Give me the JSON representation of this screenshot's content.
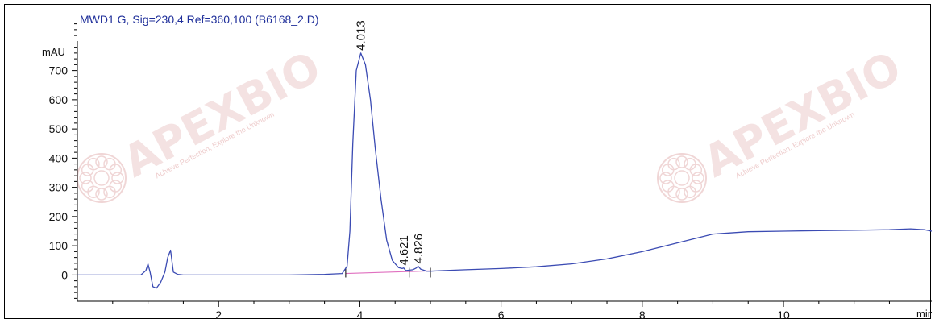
{
  "chart_data": {
    "type": "line",
    "title": "MWD1 G, Sig=230,4 Ref=360,100 (B6168_2.D)",
    "ylabel": "mAU",
    "xlabel": "min",
    "xlim": [
      0.0,
      12.1
    ],
    "ylim": [
      -90,
      870
    ],
    "x_ticks": [
      2,
      4,
      6,
      8,
      10
    ],
    "y_ticks": [
      0,
      100,
      200,
      300,
      400,
      500,
      600,
      700
    ],
    "grid": false,
    "series": [
      {
        "color": "#3b4bb3",
        "x": [
          0.0,
          0.5,
          0.9,
          0.97,
          1.0,
          1.03,
          1.07,
          1.12,
          1.18,
          1.24,
          1.28,
          1.32,
          1.36,
          1.42,
          1.5,
          2.0,
          3.0,
          3.5,
          3.75,
          3.82,
          3.86,
          3.9,
          3.95,
          4.013,
          4.08,
          4.15,
          4.22,
          4.3,
          4.38,
          4.46,
          4.55,
          4.6,
          4.621,
          4.65,
          4.75,
          4.8,
          4.826,
          4.86,
          4.95,
          5.0,
          5.2,
          5.5,
          6.0,
          6.5,
          7.0,
          7.5,
          8.0,
          8.5,
          9.0,
          9.5,
          10.0,
          10.5,
          11.0,
          11.5,
          11.8,
          12.0,
          12.1
        ],
        "y": [
          0,
          0,
          0,
          15,
          38,
          10,
          -40,
          -45,
          -25,
          10,
          60,
          85,
          10,
          2,
          0,
          0,
          0,
          2,
          5,
          30,
          150,
          450,
          700,
          760,
          720,
          600,
          430,
          260,
          120,
          50,
          25,
          22,
          24,
          15,
          18,
          24,
          30,
          20,
          13,
          13,
          15,
          18,
          22,
          28,
          38,
          55,
          80,
          110,
          140,
          148,
          150,
          152,
          153,
          155,
          158,
          155,
          150
        ]
      }
    ],
    "peaks": [
      {
        "label": "4.013",
        "x": 4.013,
        "y": 760
      },
      {
        "label": "4.621",
        "x": 4.621,
        "y": 24
      },
      {
        "label": "4.826",
        "x": 4.826,
        "y": 30
      }
    ],
    "integration_baseline": {
      "x": [
        3.8,
        5.0
      ],
      "y": [
        5,
        14
      ],
      "color": "#e070c0"
    },
    "integration_ticks_x": [
      3.8,
      4.7,
      5.0
    ],
    "watermark": {
      "brand": "APEXBIO",
      "tagline": "Achieve Perfection, Explore the Unknown",
      "color": "#f0d6d6"
    }
  }
}
